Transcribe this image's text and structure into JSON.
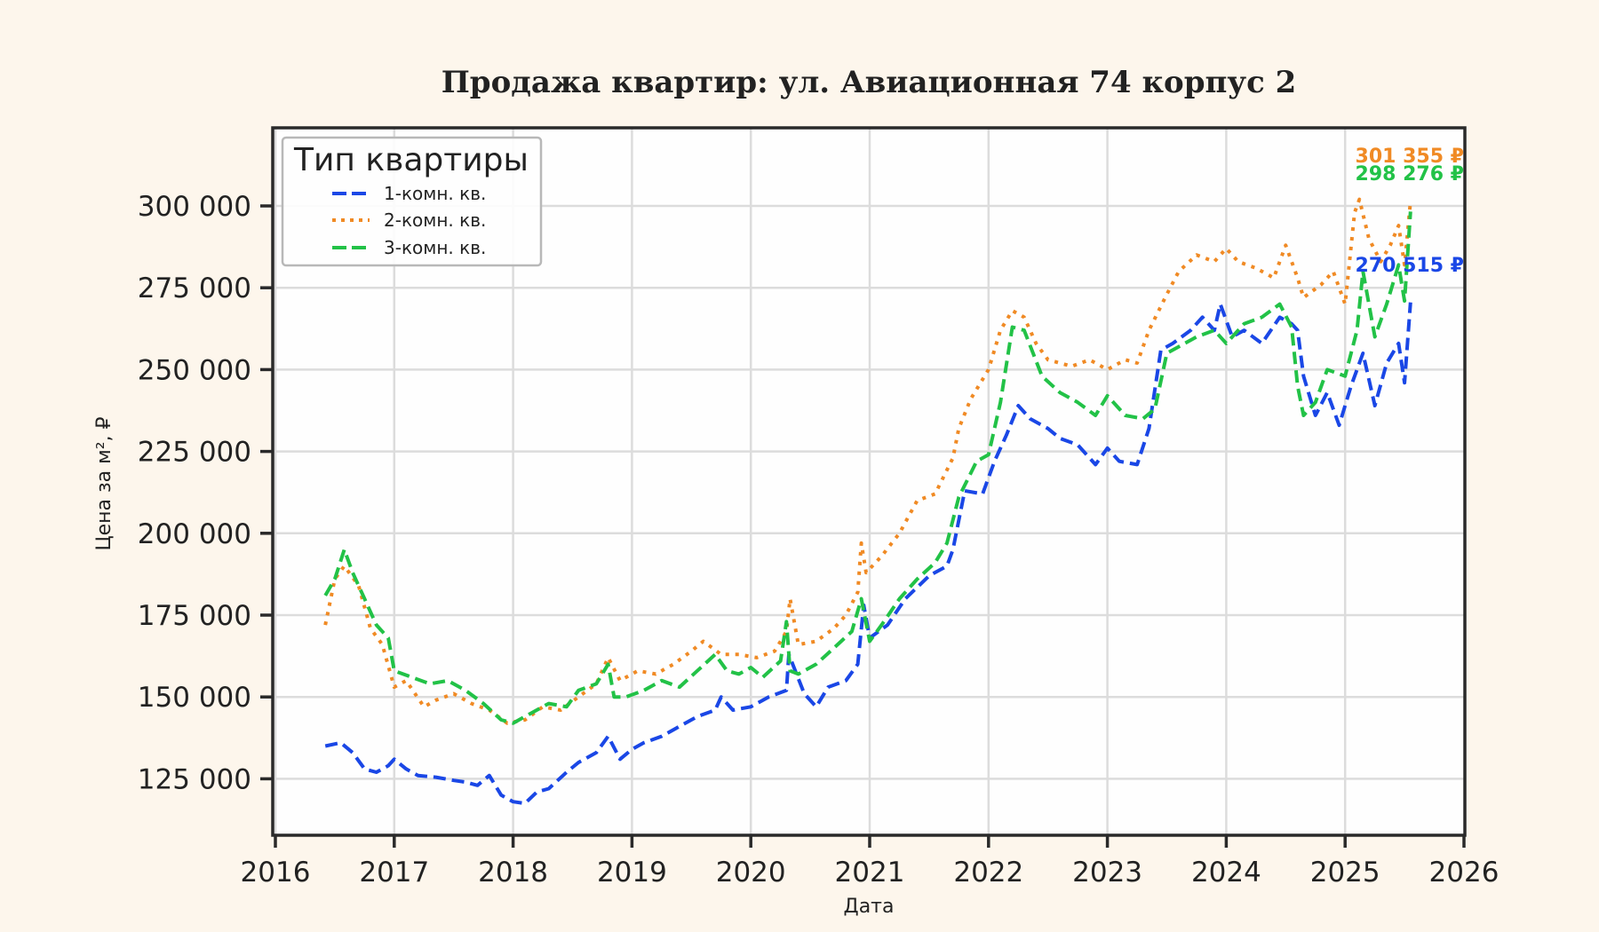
{
  "chart_data": {
    "type": "line",
    "title": "Продажа квартир: ул. Авиационная 74 корпус 2",
    "xlabel": "Дата",
    "ylabel": "Цена за м², ₽",
    "xlim": [
      2016,
      2026
    ],
    "ylim": [
      107500,
      322000
    ],
    "x_ticks": [
      "2016",
      "2017",
      "2018",
      "2019",
      "2020",
      "2021",
      "2022",
      "2023",
      "2024",
      "2025",
      "2026"
    ],
    "y_ticks": [
      {
        "value": 125000,
        "label": "125 000"
      },
      {
        "value": 150000,
        "label": "150 000"
      },
      {
        "value": 175000,
        "label": "175 000"
      },
      {
        "value": 200000,
        "label": "200 000"
      },
      {
        "value": 225000,
        "label": "225 000"
      },
      {
        "value": 250000,
        "label": "250 000"
      },
      {
        "value": 275000,
        "label": "275 000"
      },
      {
        "value": 300000,
        "label": "300 000"
      }
    ],
    "grid": true,
    "legend": {
      "title": "Тип квартиры",
      "position": "upper left"
    },
    "series": [
      {
        "name": "1-комн. кв.",
        "color": "#1a47e6",
        "style": "dashed",
        "last_value_label": "270 515 ₽",
        "x": [
          2016.42,
          2016.55,
          2016.65,
          2016.75,
          2016.85,
          2016.95,
          2017.0,
          2017.1,
          2017.2,
          2017.35,
          2017.5,
          2017.6,
          2017.7,
          2017.8,
          2017.9,
          2018.0,
          2018.1,
          2018.2,
          2018.3,
          2018.45,
          2018.55,
          2018.7,
          2018.8,
          2018.9,
          2019.0,
          2019.1,
          2019.25,
          2019.4,
          2019.55,
          2019.7,
          2019.75,
          2019.85,
          2020.0,
          2020.15,
          2020.3,
          2020.32,
          2020.45,
          2020.55,
          2020.65,
          2020.8,
          2020.9,
          2020.95,
          2021.0,
          2021.15,
          2021.3,
          2021.5,
          2021.65,
          2021.7,
          2021.8,
          2021.95,
          2022.05,
          2022.15,
          2022.25,
          2022.35,
          2022.5,
          2022.6,
          2022.75,
          2022.9,
          2023.0,
          2023.1,
          2023.25,
          2023.35,
          2023.45,
          2023.55,
          2023.7,
          2023.8,
          2023.9,
          2023.95,
          2024.05,
          2024.15,
          2024.3,
          2024.45,
          2024.55,
          2024.6,
          2024.65,
          2024.75,
          2024.85,
          2024.95,
          2025.05,
          2025.15,
          2025.25,
          2025.35,
          2025.45,
          2025.5,
          2025.55
        ],
        "values": [
          135000,
          136000,
          133000,
          128000,
          127000,
          129000,
          131000,
          128000,
          126000,
          125500,
          124500,
          124000,
          123000,
          126000,
          120000,
          118000,
          117500,
          121000,
          122000,
          127000,
          130000,
          133000,
          138000,
          131000,
          134000,
          136000,
          138000,
          141000,
          144000,
          146000,
          150000,
          146000,
          147000,
          150000,
          152000,
          163000,
          151000,
          147000,
          153000,
          155000,
          160000,
          178000,
          168000,
          172000,
          180000,
          187000,
          190000,
          195000,
          213000,
          212000,
          222000,
          230000,
          239000,
          235000,
          232000,
          229000,
          227000,
          221000,
          226000,
          222000,
          221000,
          232000,
          256000,
          258000,
          262000,
          266000,
          262000,
          270000,
          260000,
          262000,
          258000,
          266000,
          264000,
          262000,
          248000,
          236000,
          243000,
          233000,
          245000,
          255000,
          239000,
          252000,
          258000,
          246000,
          270515
        ]
      },
      {
        "name": "2-комн. кв.",
        "color": "#f08a24",
        "style": "dotted",
        "last_value_label": "301 355 ₽",
        "x": [
          2016.42,
          2016.5,
          2016.58,
          2016.7,
          2016.8,
          2016.9,
          2017.0,
          2017.1,
          2017.25,
          2017.35,
          2017.5,
          2017.65,
          2017.8,
          2017.95,
          2018.1,
          2018.25,
          2018.4,
          2018.55,
          2018.7,
          2018.8,
          2018.9,
          2019.05,
          2019.2,
          2019.35,
          2019.5,
          2019.6,
          2019.75,
          2019.9,
          2020.05,
          2020.2,
          2020.3,
          2020.33,
          2020.4,
          2020.55,
          2020.7,
          2020.8,
          2020.9,
          2020.93,
          2020.97,
          2021.1,
          2021.25,
          2021.4,
          2021.55,
          2021.7,
          2021.75,
          2021.85,
          2022.0,
          2022.1,
          2022.2,
          2022.3,
          2022.4,
          2022.5,
          2022.7,
          2022.85,
          2023.0,
          2023.15,
          2023.25,
          2023.35,
          2023.5,
          2023.6,
          2023.75,
          2023.9,
          2024.0,
          2024.1,
          2024.25,
          2024.4,
          2024.5,
          2024.6,
          2024.65,
          2024.8,
          2024.9,
          2025.0,
          2025.08,
          2025.12,
          2025.2,
          2025.3,
          2025.38,
          2025.45,
          2025.5,
          2025.55
        ],
        "values": [
          172000,
          186000,
          190000,
          184000,
          171000,
          166000,
          153000,
          155000,
          147000,
          149000,
          151000,
          148000,
          146000,
          142000,
          143000,
          147000,
          146000,
          150000,
          154000,
          162000,
          155000,
          158000,
          157000,
          160000,
          164000,
          167000,
          163000,
          163000,
          162000,
          164000,
          170000,
          180000,
          166000,
          167000,
          171000,
          175000,
          182000,
          197000,
          188000,
          193000,
          200000,
          210000,
          212000,
          223000,
          232000,
          241000,
          250000,
          262000,
          268000,
          266000,
          258000,
          253000,
          251000,
          253000,
          250000,
          253000,
          252000,
          262000,
          273000,
          280000,
          285000,
          283000,
          287000,
          283000,
          281000,
          278000,
          288000,
          278000,
          272000,
          276000,
          280000,
          270000,
          298000,
          302000,
          290000,
          283000,
          288000,
          294000,
          282000,
          301355
        ]
      },
      {
        "name": "3-комн. кв.",
        "color": "#22c247",
        "style": "dashed",
        "last_value_label": "298 276 ₽",
        "x": [
          2016.42,
          2016.5,
          2016.58,
          2016.65,
          2016.75,
          2016.85,
          2016.95,
          2017.0,
          2017.15,
          2017.3,
          2017.45,
          2017.6,
          2017.75,
          2017.9,
          2018.0,
          2018.15,
          2018.3,
          2018.45,
          2018.55,
          2018.7,
          2018.8,
          2018.85,
          2018.95,
          2019.1,
          2019.25,
          2019.4,
          2019.55,
          2019.7,
          2019.8,
          2019.9,
          2020.0,
          2020.1,
          2020.25,
          2020.3,
          2020.33,
          2020.4,
          2020.55,
          2020.7,
          2020.85,
          2020.93,
          2021.0,
          2021.1,
          2021.25,
          2021.4,
          2021.55,
          2021.65,
          2021.75,
          2021.9,
          2022.0,
          2022.1,
          2022.2,
          2022.3,
          2022.45,
          2022.6,
          2022.75,
          2022.9,
          2023.0,
          2023.15,
          2023.3,
          2023.4,
          2023.5,
          2023.6,
          2023.75,
          2023.9,
          2024.0,
          2024.15,
          2024.3,
          2024.45,
          2024.55,
          2024.6,
          2024.65,
          2024.75,
          2024.85,
          2025.0,
          2025.1,
          2025.15,
          2025.25,
          2025.35,
          2025.45,
          2025.5,
          2025.55
        ],
        "values": [
          181000,
          186000,
          195000,
          188000,
          180000,
          172000,
          168000,
          158000,
          156000,
          154000,
          155000,
          152000,
          148000,
          143000,
          142000,
          145000,
          148000,
          147000,
          152000,
          154000,
          160000,
          150000,
          150000,
          152000,
          155000,
          153000,
          158000,
          163000,
          158000,
          157000,
          159000,
          156000,
          161000,
          173000,
          158000,
          157000,
          160000,
          165000,
          170000,
          180000,
          167000,
          172000,
          180000,
          186000,
          191000,
          197000,
          211000,
          222000,
          224000,
          240000,
          263000,
          262000,
          248000,
          243000,
          240000,
          236000,
          242000,
          236000,
          235000,
          238000,
          255000,
          257000,
          260000,
          262000,
          258000,
          264000,
          266000,
          270000,
          263000,
          245000,
          236000,
          240000,
          250000,
          248000,
          262000,
          280000,
          260000,
          270000,
          282000,
          271000,
          298276
        ]
      }
    ]
  }
}
